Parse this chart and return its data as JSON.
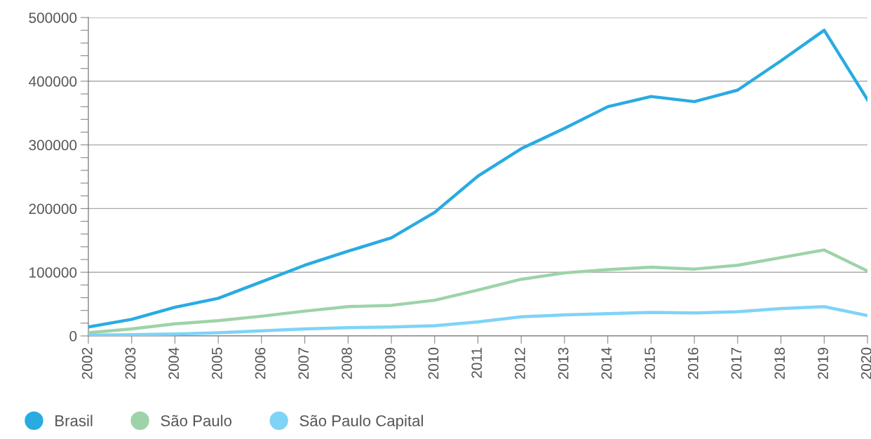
{
  "chart_data": {
    "type": "line",
    "categories": [
      "2002",
      "2003",
      "2004",
      "2005",
      "2006",
      "2007",
      "2008",
      "2009",
      "2010",
      "2011",
      "2012",
      "2013",
      "2014",
      "2015",
      "2016",
      "2017",
      "2018",
      "2019",
      "2020"
    ],
    "series": [
      {
        "name": "Brasil",
        "color": "#29abe2",
        "values": [
          14000,
          26000,
          45000,
          59000,
          85000,
          111000,
          133000,
          154000,
          194000,
          251000,
          294000,
          326000,
          360000,
          376000,
          368000,
          386000,
          432000,
          480000,
          371000
        ]
      },
      {
        "name": "São Paulo",
        "color": "#9dd3a8",
        "values": [
          5000,
          11000,
          19000,
          24000,
          31000,
          39000,
          46000,
          48000,
          56000,
          72000,
          89000,
          99000,
          104000,
          108000,
          105000,
          111000,
          123000,
          135000,
          102000
        ]
      },
      {
        "name": "São Paulo Capital",
        "color": "#7fd3f7",
        "values": [
          1000,
          2000,
          3000,
          5000,
          8000,
          11000,
          13000,
          14000,
          16000,
          22000,
          30000,
          33000,
          35000,
          37000,
          36000,
          38000,
          43000,
          46000,
          32000
        ]
      }
    ],
    "ylim": [
      0,
      500000
    ],
    "yticks": [
      0,
      {
        "value": 20000,
        "label": null
      },
      {
        "value": 40000,
        "label": null
      },
      {
        "value": 60000,
        "label": null
      },
      {
        "value": 80000,
        "label": null
      },
      100000,
      {
        "value": 120000,
        "label": null
      },
      {
        "value": 140000,
        "label": null
      },
      {
        "value": 160000,
        "label": null
      },
      {
        "value": 180000,
        "label": null
      },
      200000,
      {
        "value": 220000,
        "label": null
      },
      {
        "value": 240000,
        "label": null
      },
      {
        "value": 260000,
        "label": null
      },
      {
        "value": 280000,
        "label": null
      },
      300000,
      {
        "value": 320000,
        "label": null
      },
      {
        "value": 340000,
        "label": null
      },
      {
        "value": 360000,
        "label": null
      },
      {
        "value": 380000,
        "label": null
      },
      400000,
      {
        "value": 420000,
        "label": null
      },
      {
        "value": 440000,
        "label": null
      },
      {
        "value": 460000,
        "label": null
      },
      {
        "value": 480000,
        "label": null
      },
      500000
    ],
    "grid": "y",
    "legend": "bottom left",
    "marker": "none",
    "line_style": "solid"
  }
}
